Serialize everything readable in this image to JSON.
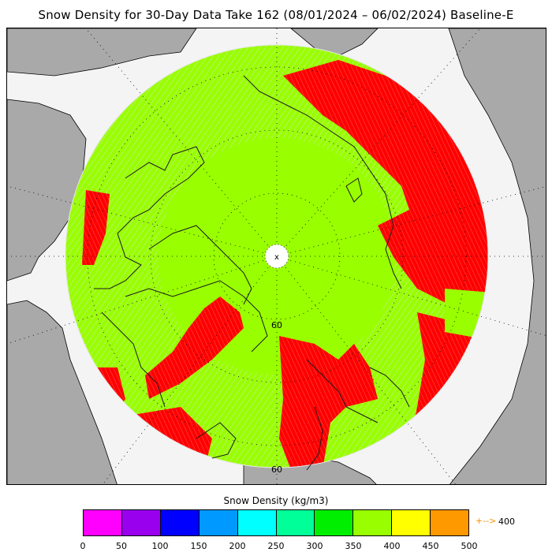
{
  "title": "Snow Density for 30-Day Data Take 162 (08/01/2024 – 06/02/2024) Baseline-E",
  "map": {
    "projection": "polar-stereographic-north",
    "land_color": "#a9a9a9",
    "ocean_color": "#f4f4f4",
    "pole_hole_color": "#ffffff",
    "pole_marker": "x",
    "latitude_labels": [
      "60",
      "60"
    ],
    "field_colors": {
      "moderate": "#99ff00",
      "high": "#ff0000",
      "missing": "#c0c0c0"
    },
    "coastline_color": "#000000",
    "graticule": "dotted"
  },
  "colorbar": {
    "title": "Snow Density (kg/m3)",
    "colors": [
      "#ff00ff",
      "#9900ee",
      "#0000ff",
      "#0099ff",
      "#00ffff",
      "#00ff99",
      "#00ee00",
      "#99ff00",
      "#ffff00",
      "#ff9900"
    ],
    "ticks": [
      "0",
      "50",
      "100",
      "150",
      "200",
      "250",
      "300",
      "350",
      "400",
      "450",
      "500"
    ],
    "overflow_arrow": "+-->",
    "overflow_value": "400",
    "overflow_color": "#f39200"
  }
}
